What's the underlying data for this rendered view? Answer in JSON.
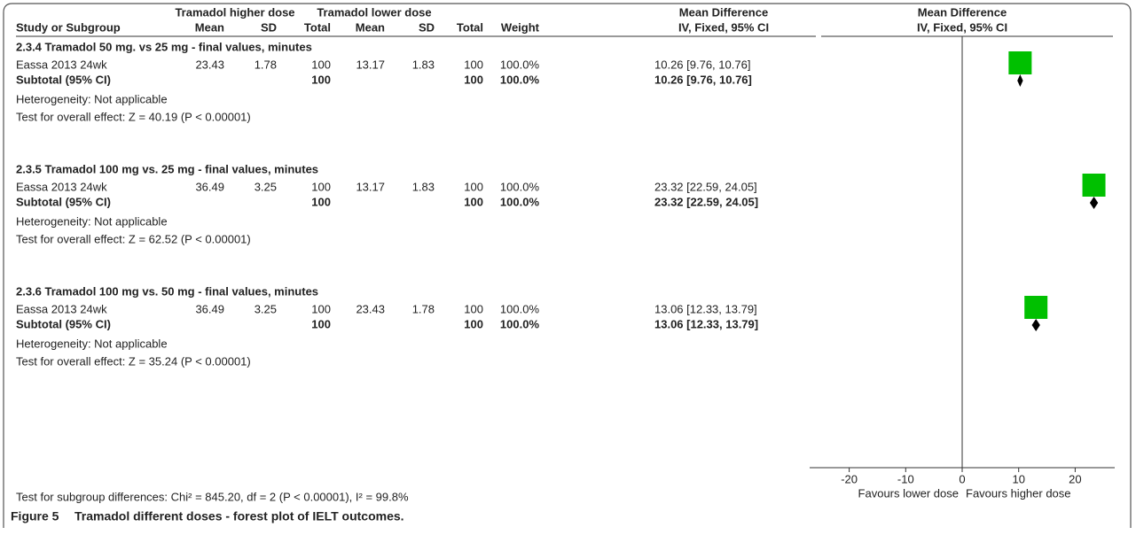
{
  "chart_data": {
    "type": "forest",
    "group_headers": [
      "Tramadol higher dose",
      "Tramadol lower dose",
      "Mean Difference"
    ],
    "columns": [
      "Study or Subgroup",
      "Mean",
      "SD",
      "Total",
      "Mean",
      "SD",
      "Total",
      "Weight",
      "IV, Fixed, 95% CI"
    ],
    "plot_title": "Mean Difference",
    "plot_subtitle": "IV, Fixed, 95% CI",
    "subgroups": [
      {
        "title": "2.3.4 Tramadol 50 mg. vs 25 mg - final values, minutes",
        "study": {
          "name": "Eassa 2013 24wk",
          "values": [
            23.43,
            1.78,
            100,
            13.17,
            1.83,
            100
          ],
          "weight": "100.0%",
          "ci_label": "10.26 [9.76, 10.76]",
          "md": 10.26,
          "ci": [
            9.76,
            10.76
          ]
        },
        "subtotal": {
          "name": "Subtotal (95% CI)",
          "totals": [
            100,
            100
          ],
          "weight": "100.0%",
          "ci_label": "10.26 [9.76, 10.76]",
          "md": 10.26,
          "ci": [
            9.76,
            10.76
          ]
        },
        "heterogeneity": "Heterogeneity: Not applicable",
        "overall": "Test for overall effect: Z = 40.19 (P < 0.00001)"
      },
      {
        "title": "2.3.5 Tramadol 100 mg vs. 25 mg - final values, minutes",
        "study": {
          "name": "Eassa 2013 24wk",
          "values": [
            36.49,
            3.25,
            100,
            13.17,
            1.83,
            100
          ],
          "weight": "100.0%",
          "ci_label": "23.32 [22.59, 24.05]",
          "md": 23.32,
          "ci": [
            22.59,
            24.05
          ]
        },
        "subtotal": {
          "name": "Subtotal (95% CI)",
          "totals": [
            100,
            100
          ],
          "weight": "100.0%",
          "ci_label": "23.32 [22.59, 24.05]",
          "md": 23.32,
          "ci": [
            22.59,
            24.05
          ]
        },
        "heterogeneity": "Heterogeneity: Not applicable",
        "overall": "Test for overall effect: Z = 62.52 (P < 0.00001)"
      },
      {
        "title": "2.3.6 Tramadol 100 mg vs. 50 mg - final values, minutes",
        "study": {
          "name": "Eassa 2013 24wk",
          "values": [
            36.49,
            3.25,
            100,
            23.43,
            1.78,
            100
          ],
          "weight": "100.0%",
          "ci_label": "13.06 [12.33, 13.79]",
          "md": 13.06,
          "ci": [
            12.33,
            13.79
          ]
        },
        "subtotal": {
          "name": "Subtotal (95% CI)",
          "totals": [
            100,
            100
          ],
          "weight": "100.0%",
          "ci_label": "13.06 [12.33, 13.79]",
          "md": 13.06,
          "ci": [
            12.33,
            13.79
          ]
        },
        "heterogeneity": "Heterogeneity: Not applicable",
        "overall": "Test for overall effect: Z = 35.24 (P < 0.00001)"
      }
    ],
    "xlim": [
      -27,
      27
    ],
    "xticks": [
      -20,
      -10,
      0,
      10,
      20
    ],
    "x_label_left": "Favours lower dose",
    "x_label_right": "Favours higher dose",
    "square_color": "#00c000",
    "diamond_color": "#000000",
    "footer": "Test for subgroup differences: Chi² = 845.20, df = 2 (P < 0.00001), I² = 99.8%",
    "caption_label": "Figure 5",
    "caption": "Tramadol different doses - forest plot of IELT outcomes."
  }
}
